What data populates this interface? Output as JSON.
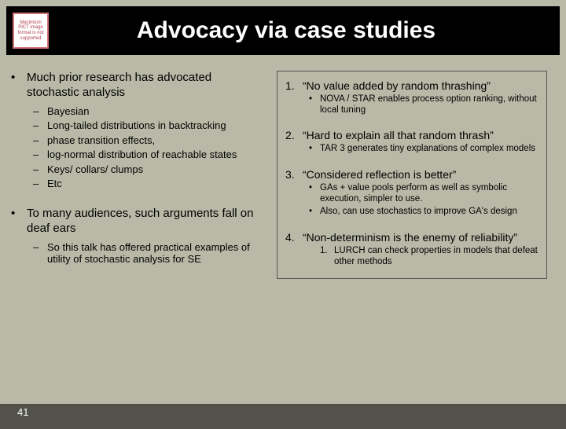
{
  "icon_placeholder": "Macintosh PICT image format is not supported",
  "title": "Advocacy via case studies",
  "left": {
    "p1": "Much prior  research has advocated stochastic analysis",
    "p1_subs": [
      "Bayesian",
      "Long-tailed distributions in backtracking",
      "phase transition effects,",
      "log-normal distribution of reachable states",
      "Keys/ collars/ clumps",
      "Etc"
    ],
    "p2": "To many audiences, such arguments fall on deaf ears",
    "p2_subs": [
      "So this talk has offered practical examples of utility of stochastic analysis for SE"
    ]
  },
  "right": {
    "i1": {
      "n": "1.",
      "t": "“No value added by random thrashing”",
      "sub": "NOVA / STAR enables process option ranking, without local tuning"
    },
    "i2": {
      "n": "2.",
      "t": "“Hard to explain all that random thrash”",
      "sub": "TAR 3 generates tiny explanations of complex models"
    },
    "i3": {
      "n": "3.",
      "t": "“Considered reflection is better”",
      "sub_a": "GAs + value pools perform as well as symbolic execution, simpler to use.",
      "sub_b": "Also, can use stochastics to improve GA's design"
    },
    "i4": {
      "n": "4.",
      "t": "“Non-determinism is the enemy of reliability”",
      "sub_n": "1.",
      "sub": "LURCH can check properties in models that defeat other methods"
    }
  },
  "slide_number": "41"
}
